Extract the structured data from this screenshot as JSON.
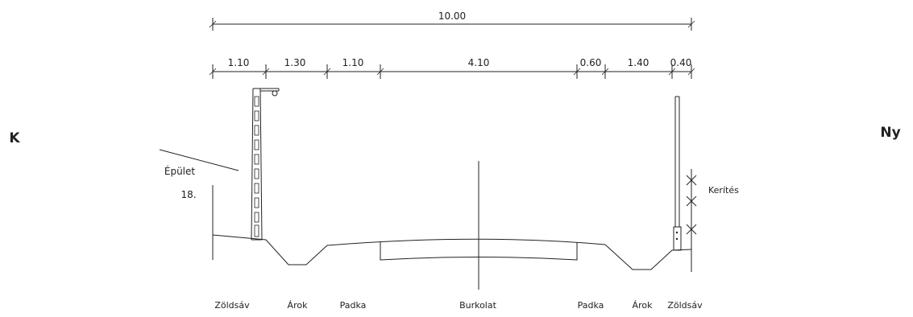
{
  "side_labels": {
    "left": "K",
    "right": "Ny"
  },
  "total_dimension": "10.00",
  "segment_dimensions": [
    "1.10",
    "1.30",
    "1.10",
    "4.10",
    "0.60",
    "1.40",
    "0.40"
  ],
  "building": {
    "label": "Épület",
    "number": "18."
  },
  "fence_label": "Kerítés",
  "bottom_labels": [
    "Zöldsáv",
    "Árok",
    "Padka",
    "Burkolat",
    "Padka",
    "Árok",
    "Zöldsáv"
  ]
}
